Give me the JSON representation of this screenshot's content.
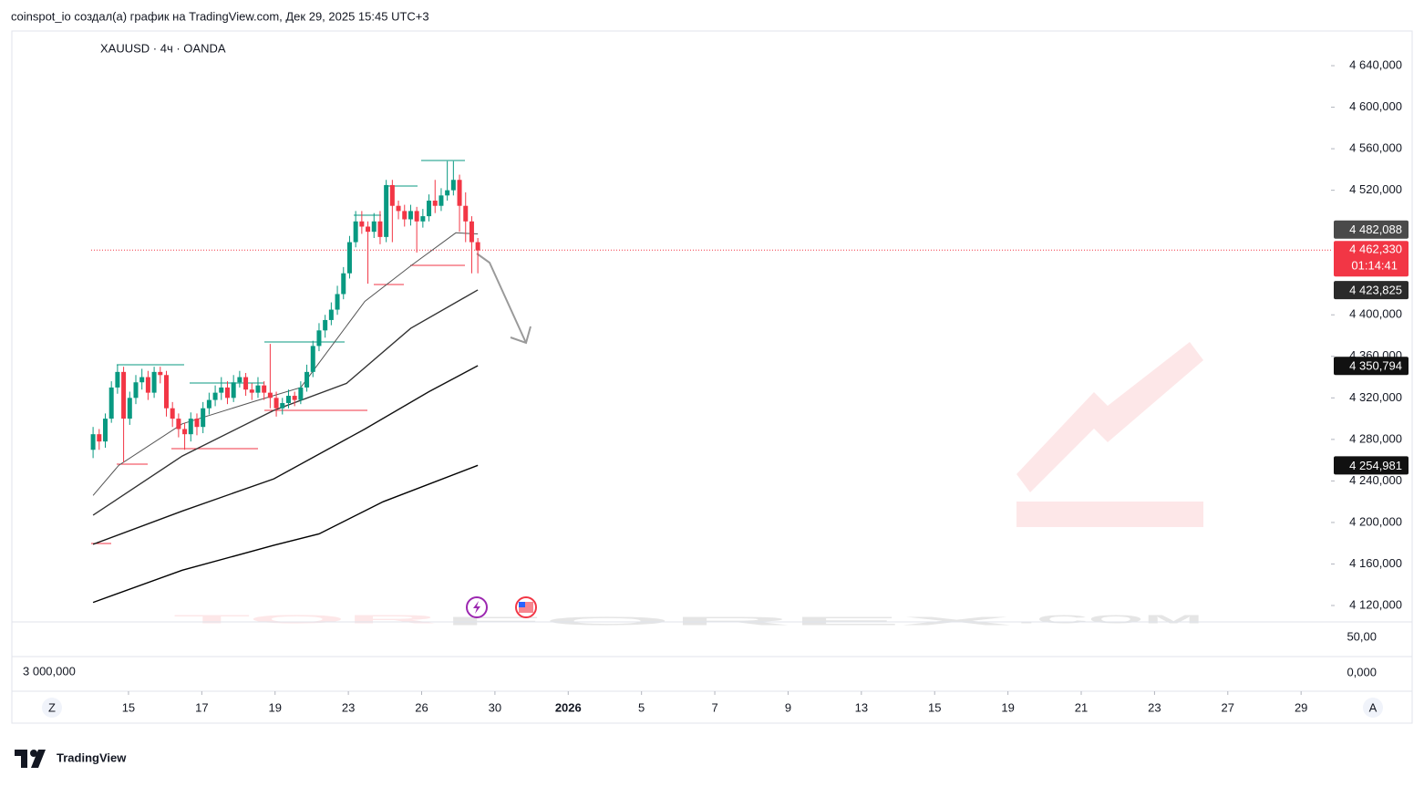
{
  "header": "coinspot_io создал(а) график на TradingView.com, Дек 29, 2025 15:45 UTC+3",
  "chart_data": {
    "type": "candlestick",
    "symbol": "XAUUSD · 4ч · OANDA",
    "x": [
      0,
      1,
      2,
      3,
      4,
      5,
      6,
      7,
      8,
      9,
      10,
      11,
      12,
      13,
      14,
      15,
      16,
      17,
      18,
      19,
      20,
      21,
      22,
      23,
      24,
      25,
      26,
      27,
      28,
      29,
      30,
      31,
      32,
      33,
      34,
      35,
      36,
      37,
      38,
      39,
      40,
      41,
      42,
      43,
      44,
      45,
      46,
      47,
      48,
      49,
      50,
      51,
      52,
      53,
      54,
      55,
      56,
      57,
      58,
      59,
      60,
      61,
      62,
      63
    ],
    "open": [
      4270,
      4285,
      4278,
      4300,
      4330,
      4345,
      4300,
      4320,
      4335,
      4340,
      4325,
      4345,
      4342,
      4310,
      4300,
      4290,
      4285,
      4300,
      4292,
      4310,
      4318,
      4325,
      4330,
      4320,
      4335,
      4340,
      4328,
      4325,
      4332,
      4325,
      4320,
      4310,
      4315,
      4322,
      4318,
      4330,
      4345,
      4370,
      4385,
      4395,
      4405,
      4420,
      4440,
      4470,
      4490,
      4485,
      4480,
      4490,
      4475,
      4525,
      4505,
      4500,
      4492,
      4500,
      4490,
      4495,
      4510,
      4505,
      4515,
      4520,
      4530,
      4505,
      4490,
      4470
    ],
    "high": [
      4292,
      4290,
      4305,
      4336,
      4352,
      4350,
      4326,
      4342,
      4348,
      4346,
      4350,
      4350,
      4346,
      4316,
      4305,
      4296,
      4306,
      4305,
      4316,
      4325,
      4332,
      4340,
      4336,
      4342,
      4346,
      4344,
      4334,
      4340,
      4336,
      4372,
      4326,
      4320,
      4328,
      4326,
      4336,
      4352,
      4375,
      4392,
      4400,
      4412,
      4428,
      4446,
      4476,
      4500,
      4500,
      4490,
      4498,
      4500,
      4530,
      4530,
      4510,
      4506,
      4506,
      4504,
      4502,
      4516,
      4530,
      4522,
      4548,
      4548,
      4535,
      4518,
      4495,
      4474
    ],
    "low": [
      4262,
      4270,
      4272,
      4296,
      4324,
      4258,
      4294,
      4314,
      4328,
      4318,
      4320,
      4334,
      4302,
      4292,
      4282,
      4270,
      4278,
      4284,
      4286,
      4304,
      4312,
      4318,
      4314,
      4316,
      4330,
      4322,
      4318,
      4320,
      4318,
      4310,
      4302,
      4304,
      4310,
      4312,
      4314,
      4326,
      4340,
      4365,
      4378,
      4390,
      4400,
      4415,
      4435,
      4465,
      4478,
      4430,
      4474,
      4468,
      4470,
      4470,
      4492,
      4485,
      4486,
      4460,
      4484,
      4490,
      4498,
      4500,
      4510,
      4515,
      4480,
      4470,
      4440,
      4440
    ],
    "close": [
      4285,
      4278,
      4300,
      4330,
      4345,
      4300,
      4320,
      4335,
      4340,
      4325,
      4345,
      4342,
      4310,
      4300,
      4290,
      4285,
      4300,
      4292,
      4310,
      4318,
      4325,
      4330,
      4320,
      4335,
      4340,
      4328,
      4325,
      4332,
      4325,
      4320,
      4310,
      4315,
      4322,
      4318,
      4330,
      4345,
      4370,
      4385,
      4395,
      4405,
      4420,
      4440,
      4470,
      4490,
      4485,
      4480,
      4490,
      4475,
      4525,
      4505,
      4500,
      4492,
      4500,
      4490,
      4495,
      4510,
      4505,
      4515,
      4520,
      4530,
      4505,
      4490,
      4470,
      4462
    ],
    "up_color": "#089981",
    "down_color": "#f23645",
    "xlim": [
      -13.3,
      202.7
    ],
    "xticks": [
      {
        "value": 5.8,
        "label": "15"
      },
      {
        "value": 17.8,
        "label": "17"
      },
      {
        "value": 29.8,
        "label": "19"
      },
      {
        "value": 41.8,
        "label": "23"
      },
      {
        "value": 53.8,
        "label": "26"
      },
      {
        "value": 65.8,
        "label": "30"
      },
      {
        "value": 77.8,
        "label": "2026"
      },
      {
        "value": 89.8,
        "label": "5"
      },
      {
        "value": 101.8,
        "label": "7"
      },
      {
        "value": 113.8,
        "label": "9"
      },
      {
        "value": 125.8,
        "label": "13"
      },
      {
        "value": 137.8,
        "label": "15"
      },
      {
        "value": 149.8,
        "label": "19"
      },
      {
        "value": 161.8,
        "label": "21"
      },
      {
        "value": 173.8,
        "label": "23"
      },
      {
        "value": 185.8,
        "label": "27"
      },
      {
        "value": 197.8,
        "label": "29"
      }
    ],
    "ylim": [
      4104.2,
      4673.4
    ],
    "yticks": [
      {
        "value": 4640,
        "label": "4 640,000"
      },
      {
        "value": 4600,
        "label": "4 600,000"
      },
      {
        "value": 4560,
        "label": "4 560,000"
      },
      {
        "value": 4520,
        "label": "4 520,000"
      },
      {
        "value": 4400,
        "label": "4 400,000"
      },
      {
        "value": 4360,
        "label": "4 360,000"
      },
      {
        "value": 4320,
        "label": "4 320,000"
      },
      {
        "value": 4280,
        "label": "4 280,000"
      },
      {
        "value": 4240,
        "label": "4 240,000"
      },
      {
        "value": 4200,
        "label": "4 200,000"
      },
      {
        "value": 4160,
        "label": "4 160,000"
      },
      {
        "value": 4120,
        "label": "4 120,000"
      }
    ],
    "lines": [
      {
        "color": "#555555",
        "x": [
          0,
          4.2,
          14.6,
          26.6,
          34,
          44.5,
          52.2,
          59.4,
          63
        ],
        "values": [
          4226,
          4255,
          4295,
          4317,
          4330,
          4413,
          4448,
          4479,
          4478
        ]
      },
      {
        "color": "#333333",
        "x": [
          0,
          14.6,
          29.6,
          41.5,
          52,
          63
        ],
        "values": [
          4207,
          4264,
          4308,
          4334,
          4387,
          4424
        ]
      },
      {
        "color": "#111111",
        "x": [
          0,
          14.6,
          29.6,
          44.5,
          55,
          63
        ],
        "values": [
          4179,
          4211,
          4242,
          4290,
          4326,
          4351
        ]
      },
      {
        "color": "#000000",
        "x": [
          0,
          14.6,
          29.6,
          37,
          47.5,
          63
        ],
        "values": [
          4123,
          4154,
          4178,
          4189,
          4220,
          4255
        ]
      }
    ],
    "price_tags": [
      {
        "value": 4482.088,
        "label": "4 482,088",
        "color": "#4a4a4a"
      },
      {
        "value": 4423.825,
        "label": "4 423,825",
        "color": "#2a2a2a"
      },
      {
        "value": 4350.794,
        "label": "4 350,794",
        "color": "#111111"
      },
      {
        "value": 4254.981,
        "label": "4 254,981",
        "color": "#111111"
      }
    ],
    "last_price": {
      "value": 4462.33,
      "label": "4 462,330",
      "countdown": "01:14:41",
      "color": "#f23645"
    },
    "lower_pane": {
      "ticks": [
        {
          "value": 50,
          "label": "50,00"
        },
        {
          "value": 0,
          "label": "0,000"
        }
      ],
      "volume_label": "3 000,000"
    },
    "watermark": {
      "left": "TOR",
      "middle": "FOREX",
      "right": ".COM"
    }
  },
  "buttons": {
    "left": "Z",
    "right": "A"
  },
  "footer": "TradingView"
}
